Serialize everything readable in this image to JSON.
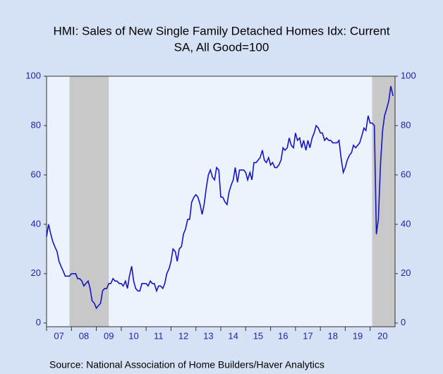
{
  "chart_data": {
    "type": "line",
    "title_lines": [
      "HMI: Sales of New Single Family Detached Homes Idx: Current",
      "SA, All Good=100"
    ],
    "source": "Source:  National Association of Home Builders/Haver Analytics",
    "x": [
      2007.0,
      2007.08,
      2007.17,
      2007.25,
      2007.33,
      2007.42,
      2007.5,
      2007.58,
      2007.67,
      2007.75,
      2007.83,
      2007.92,
      2008.0,
      2008.08,
      2008.17,
      2008.25,
      2008.33,
      2008.42,
      2008.5,
      2008.58,
      2008.67,
      2008.75,
      2008.83,
      2008.92,
      2009.0,
      2009.08,
      2009.17,
      2009.25,
      2009.33,
      2009.42,
      2009.5,
      2009.58,
      2009.67,
      2009.75,
      2009.83,
      2009.92,
      2010.0,
      2010.08,
      2010.17,
      2010.25,
      2010.33,
      2010.42,
      2010.5,
      2010.58,
      2010.67,
      2010.75,
      2010.83,
      2010.92,
      2011.0,
      2011.08,
      2011.17,
      2011.25,
      2011.33,
      2011.42,
      2011.5,
      2011.58,
      2011.67,
      2011.75,
      2011.83,
      2011.92,
      2012.0,
      2012.08,
      2012.17,
      2012.25,
      2012.33,
      2012.42,
      2012.5,
      2012.58,
      2012.67,
      2012.75,
      2012.83,
      2012.92,
      2013.0,
      2013.08,
      2013.17,
      2013.25,
      2013.33,
      2013.42,
      2013.5,
      2013.58,
      2013.67,
      2013.75,
      2013.83,
      2013.92,
      2014.0,
      2014.08,
      2014.17,
      2014.25,
      2014.33,
      2014.42,
      2014.5,
      2014.58,
      2014.67,
      2014.75,
      2014.83,
      2014.92,
      2015.0,
      2015.08,
      2015.17,
      2015.25,
      2015.33,
      2015.42,
      2015.5,
      2015.58,
      2015.67,
      2015.75,
      2015.83,
      2015.92,
      2016.0,
      2016.08,
      2016.17,
      2016.25,
      2016.33,
      2016.42,
      2016.5,
      2016.58,
      2016.67,
      2016.75,
      2016.83,
      2016.92,
      2017.0,
      2017.08,
      2017.17,
      2017.25,
      2017.33,
      2017.42,
      2017.5,
      2017.58,
      2017.67,
      2017.75,
      2017.83,
      2017.92,
      2018.0,
      2018.08,
      2018.17,
      2018.25,
      2018.33,
      2018.42,
      2018.5,
      2018.58,
      2018.67,
      2018.75,
      2018.83,
      2018.92,
      2019.0,
      2019.08,
      2019.17,
      2019.25,
      2019.33,
      2019.42,
      2019.5,
      2019.58,
      2019.67,
      2019.75,
      2019.83,
      2019.92,
      2020.0,
      2020.08,
      2020.17,
      2020.25,
      2020.33,
      2020.42,
      2020.5,
      2020.58,
      2020.67,
      2020.75,
      2020.83,
      2020.92
    ],
    "series": [
      {
        "color": "#1414c8",
        "values": [
          35,
          40,
          36,
          33,
          31,
          29,
          25,
          23,
          21,
          19,
          19,
          19,
          20,
          20,
          20,
          18,
          18,
          17,
          15,
          16,
          17,
          14,
          9,
          8,
          6,
          7,
          8,
          13,
          14,
          14,
          16,
          16,
          18,
          17,
          17,
          16,
          16,
          15,
          17,
          14,
          19,
          23,
          17,
          14,
          13,
          13,
          16,
          16,
          16,
          15,
          17,
          16,
          16,
          13,
          15,
          15,
          14,
          16,
          20,
          22,
          25,
          30,
          29,
          25,
          30,
          31,
          36,
          38,
          42,
          42,
          49,
          51,
          52,
          51,
          48,
          44,
          48,
          55,
          60,
          62,
          59,
          58,
          63,
          62,
          51,
          51,
          49,
          48,
          53,
          56,
          58,
          63,
          57,
          62,
          62,
          62,
          61,
          58,
          61,
          58,
          65,
          65,
          66,
          67,
          70,
          66,
          65,
          67,
          64,
          65,
          63,
          63,
          64,
          66,
          71,
          70,
          71,
          75,
          72,
          71,
          77,
          74,
          75,
          71,
          74,
          70,
          74,
          71,
          75,
          77,
          80,
          79,
          77,
          77,
          74,
          75,
          74,
          74,
          73,
          73,
          73,
          74,
          67,
          61,
          63,
          66,
          68,
          69,
          72,
          71,
          72,
          73,
          76,
          79,
          78,
          84,
          81,
          81,
          80,
          36,
          42,
          65,
          78,
          84,
          87,
          90,
          96,
          92
        ]
      }
    ],
    "shaded_ranges": [
      [
        2007.92,
        2009.5
      ],
      [
        2020.08,
        2021
      ]
    ],
    "xlim": [
      2007,
      2021
    ],
    "xticks": [
      {
        "value": 2007.5,
        "label": "07"
      },
      {
        "value": 2008.5,
        "label": "08"
      },
      {
        "value": 2009.5,
        "label": "09"
      },
      {
        "value": 2010.5,
        "label": "10"
      },
      {
        "value": 2011.5,
        "label": "11"
      },
      {
        "value": 2012.5,
        "label": "12"
      },
      {
        "value": 2013.5,
        "label": "13"
      },
      {
        "value": 2014.5,
        "label": "14"
      },
      {
        "value": 2015.5,
        "label": "15"
      },
      {
        "value": 2016.5,
        "label": "16"
      },
      {
        "value": 2017.5,
        "label": "17"
      },
      {
        "value": 2018.5,
        "label": "18"
      },
      {
        "value": 2019.5,
        "label": "19"
      },
      {
        "value": 2020.5,
        "label": "20"
      }
    ],
    "ylim": [
      -1.5,
      100
    ],
    "yticks": [
      0,
      20,
      40,
      60,
      80,
      100
    ]
  }
}
